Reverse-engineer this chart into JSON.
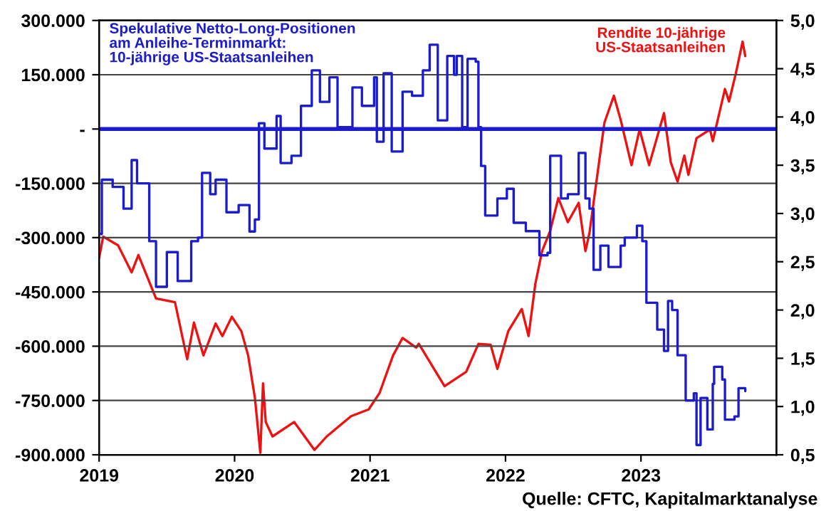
{
  "chart_data": {
    "type": "line",
    "xlim": [
      2019,
      2024
    ],
    "xticks": [
      2019,
      2020,
      2021,
      2022,
      2023
    ],
    "ylim": [
      -900000,
      300000
    ],
    "yticks": [
      {
        "value": -900000,
        "label": "-900.000"
      },
      {
        "value": -750000,
        "label": "-750.000"
      },
      {
        "value": -600000,
        "label": "-600.000"
      },
      {
        "value": -450000,
        "label": "-450.000"
      },
      {
        "value": -300000,
        "label": "-300.000"
      },
      {
        "value": -150000,
        "label": "-150.000"
      },
      {
        "value": 0,
        "label": "-"
      },
      {
        "value": 150000,
        "label": "150.000"
      },
      {
        "value": 300000,
        "label": "300.000"
      }
    ],
    "y2lim": [
      0.5,
      5.0
    ],
    "y2ticks": [
      {
        "value": 0.5,
        "label": "0,5"
      },
      {
        "value": 1.0,
        "label": "1,0"
      },
      {
        "value": 1.5,
        "label": "1,5"
      },
      {
        "value": 2.0,
        "label": "2,0"
      },
      {
        "value": 2.5,
        "label": "2,5"
      },
      {
        "value": 3.0,
        "label": "3,0"
      },
      {
        "value": 3.5,
        "label": "3,5"
      },
      {
        "value": 4.0,
        "label": "4,0"
      },
      {
        "value": 4.5,
        "label": "4,5"
      },
      {
        "value": 5.0,
        "label": "5,0"
      }
    ],
    "grid": "y",
    "ref_lines": [
      {
        "axis": "y",
        "value": 0,
        "color": "#1c1ccf"
      }
    ],
    "annotations": [
      "Quelle: CFTC, Kapitalmarktanalyse"
    ],
    "series": [
      {
        "name": "Spekulative Netto-Long-Positionen\nam Anleihe-Terminmarkt:\n10-jährige US-Staatsanleihen",
        "type": "step",
        "color": "#1c1ccf",
        "x": [
          2019.0,
          2019.02,
          2019.1,
          2019.18,
          2019.24,
          2019.28,
          2019.37,
          2019.42,
          2019.5,
          2019.58,
          2019.68,
          2019.73,
          2019.76,
          2019.82,
          2019.86,
          2019.94,
          2020.03,
          2020.11,
          2020.15,
          2020.18,
          2020.22,
          2020.31,
          2020.34,
          2020.42,
          2020.49,
          2020.57,
          2020.63,
          2020.7,
          2020.76,
          2020.87,
          2020.94,
          2021.03,
          2021.05,
          2021.1,
          2021.16,
          2021.24,
          2021.31,
          2021.39,
          2021.44,
          2021.5,
          2021.57,
          2021.62,
          2021.64,
          2021.68,
          2021.72,
          2021.78,
          2021.8,
          2021.82,
          2021.85,
          2021.94,
          2022.01,
          2022.06,
          2022.15,
          2022.25,
          2022.31,
          2022.33,
          2022.38,
          2022.41,
          2022.46,
          2022.54,
          2022.59,
          2022.62,
          2022.65,
          2022.7,
          2022.76,
          2022.85,
          2022.88,
          2022.97,
          2023.01,
          2023.04,
          2023.09,
          2023.12,
          2023.17,
          2023.2,
          2023.23,
          2023.27,
          2023.33,
          2023.39,
          2023.41,
          2023.44,
          2023.49,
          2023.53,
          2023.54,
          2023.6,
          2023.62,
          2023.69,
          2023.72,
          2023.77
        ],
        "values": [
          -290000,
          -140000,
          -160000,
          -220000,
          -86000,
          -150000,
          -310000,
          -436000,
          -340000,
          -420000,
          -310000,
          -300000,
          -121000,
          -180000,
          -140000,
          -230000,
          -210000,
          -283000,
          -250000,
          16000,
          -54000,
          36000,
          -94000,
          -74000,
          64000,
          162000,
          75000,
          143000,
          5000,
          115000,
          64000,
          143000,
          -35000,
          154000,
          -62000,
          103000,
          92000,
          162000,
          233000,
          24000,
          202000,
          150000,
          202000,
          5000,
          194000,
          186000,
          5000,
          -102000,
          -239000,
          -192000,
          -165000,
          -259000,
          -282000,
          -349000,
          -342000,
          -74000,
          -74000,
          -192000,
          -180000,
          -66000,
          -192000,
          -220000,
          -389000,
          -322000,
          -381000,
          -322000,
          -300000,
          -267000,
          -310000,
          -480000,
          -480000,
          -554000,
          -613000,
          -475000,
          -500000,
          -625000,
          -750000,
          -730000,
          -873000,
          -743000,
          -830000,
          -704000,
          -657000,
          -692000,
          -803000,
          -794000,
          -716000,
          -724000
        ]
      },
      {
        "name": "Rendite 10-jährige\nUS-Staatsanleihen",
        "axis": "y2",
        "color": "#ee1111",
        "x": [
          2019.0,
          2019.03,
          2019.14,
          2019.24,
          2019.29,
          2019.42,
          2019.56,
          2019.65,
          2019.7,
          2019.77,
          2019.86,
          2019.91,
          2019.98,
          2020.05,
          2020.1,
          2020.15,
          2020.19,
          2020.21,
          2020.23,
          2020.28,
          2020.44,
          2020.59,
          2020.68,
          2020.86,
          2020.99,
          2021.07,
          2021.17,
          2021.24,
          2021.34,
          2021.36,
          2021.55,
          2021.71,
          2021.8,
          2021.89,
          2021.94,
          2022.02,
          2022.12,
          2022.17,
          2022.22,
          2022.27,
          2022.33,
          2022.39,
          2022.46,
          2022.54,
          2022.59,
          2022.62,
          2022.73,
          2022.8,
          2022.85,
          2022.93,
          2022.99,
          2023.06,
          2023.17,
          2023.22,
          2023.27,
          2023.32,
          2023.35,
          2023.41,
          2023.51,
          2023.53,
          2023.62,
          2023.65,
          2023.7,
          2023.75,
          2023.77
        ],
        "values": [
          2.54,
          2.76,
          2.67,
          2.39,
          2.57,
          2.12,
          2.08,
          1.49,
          1.87,
          1.53,
          1.86,
          1.73,
          1.93,
          1.78,
          1.53,
          1.09,
          0.52,
          1.24,
          0.84,
          0.69,
          0.84,
          0.55,
          0.69,
          0.9,
          0.97,
          1.14,
          1.53,
          1.71,
          1.61,
          1.65,
          1.21,
          1.36,
          1.65,
          1.64,
          1.39,
          1.78,
          2.01,
          1.73,
          2.27,
          2.61,
          2.82,
          3.16,
          2.91,
          3.11,
          2.61,
          2.8,
          3.94,
          4.22,
          3.97,
          3.5,
          3.87,
          3.5,
          4.04,
          3.53,
          3.33,
          3.6,
          3.4,
          3.78,
          3.87,
          3.75,
          4.29,
          4.16,
          4.45,
          4.78,
          4.63
        ]
      }
    ]
  }
}
